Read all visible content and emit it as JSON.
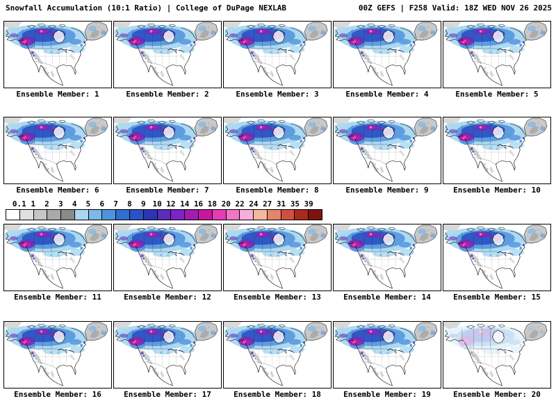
{
  "header": {
    "title_left": "Snowfall Accumulation (10:1 Ratio) | College of DuPage NEXLAB",
    "title_right": "00Z GEFS | F258 Valid: 18Z WED NOV 26 2025"
  },
  "colorbar": {
    "ticks": [
      "0.1",
      "1",
      "2",
      "3",
      "4",
      "5",
      "6",
      "7",
      "8",
      "9",
      "10",
      "12",
      "14",
      "16",
      "18",
      "20",
      "22",
      "24",
      "27",
      "31",
      "35",
      "39"
    ],
    "colors": [
      "#ffffff",
      "#e0e0e0",
      "#c6c6c6",
      "#a9a9a9",
      "#8a8a8a",
      "#a9d7f0",
      "#7cb8e8",
      "#4f93dd",
      "#2f6fd0",
      "#2a52c4",
      "#2c35b4",
      "#5b2db8",
      "#7d24c4",
      "#a21caf",
      "#c7179e",
      "#e23db2",
      "#ef77c5",
      "#f7aeda",
      "#f3b8a0",
      "#e4846a",
      "#d05040",
      "#aa2a1e",
      "#7c150e"
    ]
  },
  "panels": [
    {
      "label": "Ensemble Member: 1"
    },
    {
      "label": "Ensemble Member: 2"
    },
    {
      "label": "Ensemble Member: 3"
    },
    {
      "label": "Ensemble Member: 4"
    },
    {
      "label": "Ensemble Member: 5"
    },
    {
      "label": "Ensemble Member: 6"
    },
    {
      "label": "Ensemble Member: 7"
    },
    {
      "label": "Ensemble Member: 8"
    },
    {
      "label": "Ensemble Member: 9"
    },
    {
      "label": "Ensemble Member: 10"
    },
    {
      "label": "Ensemble Member: 11"
    },
    {
      "label": "Ensemble Member: 12"
    },
    {
      "label": "Ensemble Member: 13"
    },
    {
      "label": "Ensemble Member: 14"
    },
    {
      "label": "Ensemble Member: 15"
    },
    {
      "label": "Ensemble Member: 16"
    },
    {
      "label": "Ensemble Member: 17"
    },
    {
      "label": "Ensemble Member: 18"
    },
    {
      "label": "Ensemble Member: 19"
    },
    {
      "label": "Ensemble Member: 20"
    }
  ]
}
